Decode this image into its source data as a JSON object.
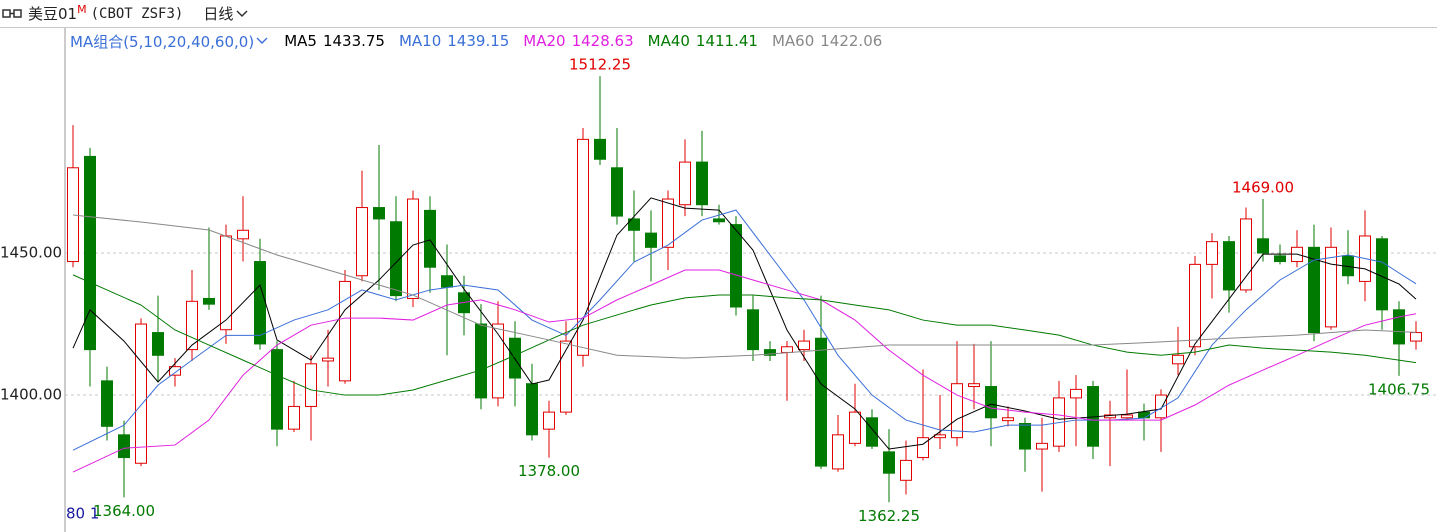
{
  "chart_data": {
    "type": "candlestick",
    "title": "美豆01",
    "title_mark": "M",
    "subtitle": "(CBOT ZSF3)",
    "period": "日线",
    "indicator_label": "MA组合(5,10,20,40,60,0)",
    "footer_text": "80 1",
    "up_color": "#e00000",
    "down_color": "#007a00",
    "grid": true,
    "ylim": [
      1351.8,
      1529.2
    ],
    "yticks": [
      {
        "value": 1450,
        "label": "1450.00"
      },
      {
        "value": 1400,
        "label": "1400.00"
      }
    ],
    "open": [
      1447,
      1484,
      1405,
      1386,
      1376,
      1422,
      1407,
      1416,
      1434,
      1423,
      1455,
      1447,
      1416,
      1388,
      1396,
      1412,
      1405,
      1442,
      1466,
      1461,
      1434,
      1465,
      1442,
      1436,
      1425,
      1399,
      1420,
      1404,
      1388,
      1394,
      1414,
      1490,
      1480,
      1462,
      1457,
      1452,
      1467,
      1482,
      1462,
      1460,
      1430,
      1416,
      1415,
      1416,
      1420,
      1374,
      1383,
      1392,
      1380,
      1370,
      1378,
      1385,
      1385,
      1403,
      1403,
      1391,
      1390,
      1381,
      1382,
      1399,
      1403,
      1392,
      1392,
      1394,
      1392,
      1411,
      1417,
      1446,
      1454,
      1437,
      1455,
      1449,
      1447,
      1452,
      1424,
      1449,
      1440,
      1455,
      1430,
      1419
    ],
    "high": [
      1495,
      1487,
      1410,
      1391,
      1427,
      1435,
      1413,
      1444,
      1459,
      1460,
      1470,
      1455,
      1419,
      1405,
      1414,
      1423,
      1444,
      1479,
      1488,
      1470,
      1472,
      1470,
      1453,
      1442,
      1432,
      1433,
      1426,
      1411,
      1398,
      1426,
      1494,
      1512.25,
      1494,
      1472,
      1465,
      1472,
      1490,
      1493,
      1467,
      1463,
      1435,
      1419,
      1419,
      1423,
      1435,
      1393,
      1404,
      1395,
      1388,
      1384,
      1409,
      1400,
      1419,
      1418,
      1419,
      1396,
      1392,
      1392,
      1405,
      1407,
      1405,
      1398,
      1409,
      1397,
      1402,
      1424,
      1449,
      1457,
      1456,
      1466,
      1469,
      1453,
      1458,
      1460,
      1459,
      1458,
      1465,
      1456,
      1433,
      1426
    ],
    "low": [
      1445,
      1403,
      1384,
      1364,
      1375,
      1405,
      1403,
      1412,
      1430,
      1418,
      1447,
      1416,
      1382,
      1387,
      1384,
      1403,
      1404,
      1440,
      1437,
      1433,
      1431,
      1436,
      1414,
      1421,
      1395,
      1396,
      1396,
      1384,
      1378,
      1393,
      1410,
      1481,
      1460,
      1447,
      1440,
      1444,
      1463,
      1463,
      1460,
      1428,
      1412,
      1412,
      1398,
      1412,
      1374,
      1373,
      1382,
      1381,
      1362.25,
      1365,
      1377,
      1381,
      1382,
      1395,
      1382,
      1389,
      1373,
      1366,
      1380,
      1382,
      1377.5,
      1375,
      1391,
      1384,
      1380,
      1407,
      1414,
      1434,
      1429,
      1436,
      1447,
      1446,
      1445,
      1419,
      1423,
      1439,
      1433,
      1423,
      1406.75,
      1416
    ],
    "close": [
      1480,
      1416,
      1389,
      1378,
      1425,
      1414,
      1410,
      1433,
      1432,
      1456,
      1458,
      1418,
      1388,
      1396,
      1411,
      1413,
      1440,
      1466,
      1462,
      1435,
      1469,
      1445,
      1438,
      1429,
      1399,
      1425,
      1406,
      1386,
      1394,
      1419,
      1490,
      1483,
      1463,
      1458,
      1452,
      1469,
      1482,
      1467,
      1461,
      1431,
      1416,
      1414,
      1417,
      1419,
      1375,
      1386,
      1394,
      1382,
      1372.5,
      1377,
      1385,
      1386,
      1404,
      1404,
      1392,
      1392,
      1381,
      1383,
      1399,
      1402,
      1382,
      1393,
      1393,
      1392,
      1400,
      1414,
      1446,
      1454,
      1437,
      1462,
      1450,
      1447,
      1452,
      1422,
      1452,
      1442,
      1456,
      1430,
      1418,
      1422
    ],
    "annotations": [
      {
        "value": 1512.25,
        "label": "1512.25"
      },
      {
        "value": 1364,
        "label": "1364.00"
      },
      {
        "value": 1378,
        "label": "1378.00"
      },
      {
        "value": 1362.25,
        "label": "1362.25"
      },
      {
        "value": 1469,
        "label": "1469.00"
      },
      {
        "value": 1406.75,
        "label": "1406.75"
      }
    ],
    "series": [
      {
        "name": "MA5",
        "color": "#000000",
        "x": [
          0,
          1,
          3,
          5,
          7,
          9,
          11,
          12,
          14,
          16,
          18,
          20,
          21,
          23,
          25,
          27,
          28,
          30,
          32,
          34,
          36,
          38,
          40,
          42,
          44,
          46,
          48,
          50,
          52,
          54,
          56,
          58,
          60,
          62,
          64,
          66,
          68,
          70,
          72,
          74,
          76,
          78,
          79
        ],
        "values": [
          1416.5,
          1430,
          1419,
          1404.6,
          1417.6,
          1426.4,
          1438.7,
          1419.4,
          1412.3,
          1430,
          1440.5,
          1452.8,
          1454.6,
          1437.3,
          1421.5,
          1403.9,
          1405.3,
          1426.4,
          1456.3,
          1469.4,
          1465.8,
          1465.1,
          1451,
          1422.9,
          1403.9,
          1395.1,
          1381,
          1382.7,
          1391.5,
          1396.8,
          1394.4,
          1391.5,
          1392.3,
          1393.3,
          1395.1,
          1418,
          1433.8,
          1449.6,
          1449.6,
          1446.1,
          1444.4,
          1439.1,
          1433.75
        ]
      },
      {
        "name": "MA10",
        "color": "#3a6fd8",
        "x": [
          0,
          3,
          5,
          7,
          9,
          11,
          13,
          15,
          17,
          19,
          21,
          23,
          25,
          27,
          29,
          31,
          33,
          35,
          37,
          39,
          41,
          43,
          45,
          47,
          49,
          51,
          53,
          55,
          57,
          59,
          61,
          63,
          65,
          67,
          69,
          71,
          73,
          75,
          77,
          79
        ],
        "values": [
          1380.6,
          1389.4,
          1403.5,
          1412.3,
          1421,
          1421,
          1426.4,
          1430,
          1437,
          1433.5,
          1437,
          1438.7,
          1437,
          1426.4,
          1421,
          1433.5,
          1446.8,
          1452.8,
          1461.6,
          1465.1,
          1449.3,
          1433.5,
          1414,
          1400,
          1391.2,
          1387.7,
          1387,
          1389.4,
          1389.4,
          1391.2,
          1391.2,
          1391.9,
          1399,
          1417.6,
          1430,
          1440.5,
          1447.5,
          1449.3,
          1446.8,
          1439.15
        ]
      },
      {
        "name": "MA20",
        "color": "#e020e0",
        "x": [
          0,
          3,
          6,
          8,
          10,
          12,
          14,
          16,
          18,
          20,
          22,
          24,
          26,
          28,
          30,
          32,
          34,
          36,
          38,
          40,
          42,
          44,
          46,
          48,
          50,
          52,
          54,
          56,
          58,
          60,
          62,
          64,
          66,
          68,
          70,
          72,
          74,
          76,
          78,
          79
        ],
        "values": [
          1372.9,
          1381.3,
          1382.4,
          1391.2,
          1407,
          1417.6,
          1424.6,
          1427.1,
          1427.1,
          1426.4,
          1431.7,
          1433.5,
          1430,
          1425.7,
          1427.1,
          1433.5,
          1438.7,
          1444,
          1444,
          1440.5,
          1437,
          1433.5,
          1426.4,
          1415.8,
          1407,
          1400,
          1395.4,
          1394,
          1393,
          1391.2,
          1391.2,
          1391.2,
          1396.5,
          1403.5,
          1408.8,
          1414,
          1419.4,
          1424.6,
          1427.5,
          1428.63
        ]
      },
      {
        "name": "MA40",
        "color": "#007a00",
        "x": [
          0,
          2,
          4,
          6,
          8,
          10,
          12,
          14,
          16,
          18,
          20,
          22,
          24,
          26,
          28,
          30,
          32,
          34,
          36,
          38,
          40,
          42,
          44,
          46,
          48,
          50,
          52,
          54,
          56,
          58,
          60,
          62,
          64,
          66,
          68,
          70,
          72,
          74,
          76,
          79
        ],
        "values": [
          1442.3,
          1437,
          1431.7,
          1422.9,
          1417.6,
          1412.3,
          1407,
          1401.8,
          1400,
          1400,
          1401.8,
          1405.3,
          1408.8,
          1414,
          1419.4,
          1424.6,
          1428.2,
          1431.7,
          1434.2,
          1435.2,
          1435.2,
          1434.2,
          1433.5,
          1431.7,
          1430,
          1426.4,
          1424.6,
          1424.6,
          1422.9,
          1421.1,
          1417.6,
          1415.1,
          1414,
          1415.1,
          1417.6,
          1416.5,
          1415.8,
          1415.1,
          1414,
          1411.41
        ]
      },
      {
        "name": "MA60",
        "color": "#888888",
        "x": [
          0,
          4,
          8,
          12,
          16,
          20,
          24,
          28,
          32,
          36,
          40,
          44,
          48,
          52,
          56,
          60,
          64,
          68,
          72,
          76,
          79
        ],
        "values": [
          1463.4,
          1460.9,
          1458.1,
          1449.3,
          1442.3,
          1435.2,
          1424.6,
          1419.4,
          1414,
          1413,
          1414,
          1415.8,
          1417.6,
          1417.6,
          1417.6,
          1417.6,
          1418.7,
          1420,
          1421.1,
          1422.9,
          1422.06
        ]
      }
    ]
  }
}
